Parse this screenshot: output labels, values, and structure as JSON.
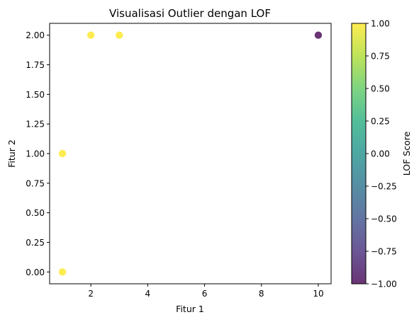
{
  "chart_data": {
    "type": "scatter",
    "title": "Visualisasi Outlier dengan LOF",
    "xlabel": "Fitur 1",
    "ylabel": "Fitur 2",
    "xlim": [
      0.55,
      10.45
    ],
    "ylim": [
      -0.1,
      2.1
    ],
    "x_ticks": [
      2,
      4,
      6,
      8,
      10
    ],
    "x_tick_labels": [
      "2",
      "4",
      "6",
      "8",
      "10"
    ],
    "y_ticks": [
      0.0,
      0.25,
      0.5,
      0.75,
      1.0,
      1.25,
      1.5,
      1.75,
      2.0
    ],
    "y_tick_labels": [
      "0.00",
      "0.25",
      "0.50",
      "0.75",
      "1.00",
      "1.25",
      "1.50",
      "1.75",
      "2.00"
    ],
    "grid": false,
    "points": [
      {
        "x": 1,
        "y": 0,
        "score": 1
      },
      {
        "x": 1,
        "y": 1,
        "score": 1
      },
      {
        "x": 2,
        "y": 2,
        "score": 1
      },
      {
        "x": 3,
        "y": 2,
        "score": 1
      },
      {
        "x": 10,
        "y": 2,
        "score": -1
      }
    ],
    "colorbar": {
      "label": "LOF Score",
      "range": [
        -1.0,
        1.0
      ],
      "ticks": [
        -1.0,
        -0.75,
        -0.5,
        -0.25,
        0.0,
        0.25,
        0.5,
        0.75,
        1.0
      ],
      "tick_labels": [
        "−1.00",
        "−0.75",
        "−0.50",
        "−0.25",
        "0.00",
        "0.25",
        "0.50",
        "0.75",
        "1.00"
      ],
      "colormap": "viridis"
    },
    "marker_alpha": 0.8
  }
}
